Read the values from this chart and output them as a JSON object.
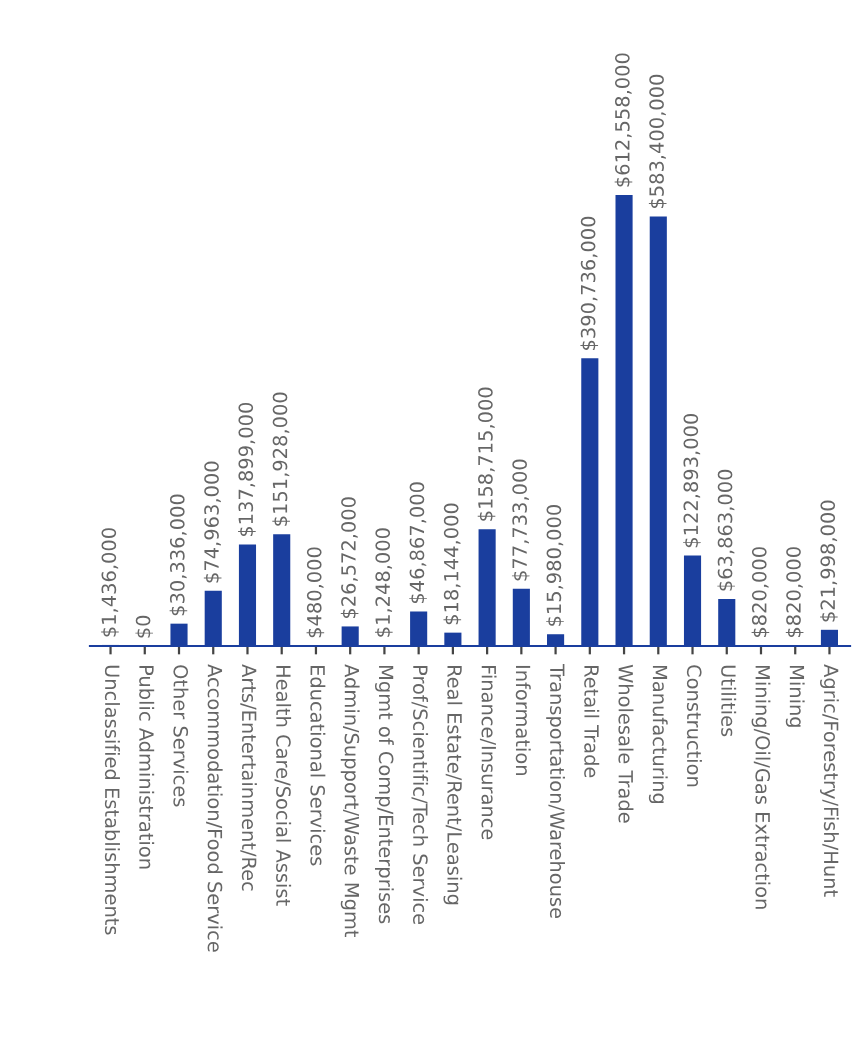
{
  "chart_data": {
    "type": "bar",
    "categories": [
      "Unclassified Establishments",
      "Public Administration",
      "Other Services",
      "Accommodation/Food Service",
      "Arts/Entertainment/Rec",
      "Health Care/Social Assist",
      "Educational Services",
      "Admin/Support/Waste Mgmt",
      "Mgmt of Comp/Enterprises",
      "Prof/Scientific/Tech Service",
      "Real Estate/Rent/Leasing",
      "Finance/Insurance",
      "Information",
      "Transportation/Warehouse",
      "Retail Trade",
      "Wholesale Trade",
      "Manufacturing",
      "Construction",
      "Utilities",
      "Mining/Oil/Gas Extraction",
      "Mining",
      "Agric/Forestry/Fish/Hunt"
    ],
    "values": [
      1436000,
      0,
      30336000,
      74963000,
      137899000,
      151928000,
      480000,
      26572000,
      1248000,
      46867000,
      18144000,
      158715000,
      77733000,
      15980000,
      390736000,
      612558000,
      583400000,
      122893000,
      63863000,
      820000,
      820000,
      21998000
    ],
    "value_labels": [
      "$1,436,000",
      "$0",
      "$30,336,000",
      "$74,963,000",
      "$137,899,000",
      "$151,928,000",
      "$480,000",
      "$26,572,000",
      "$1,248,000",
      "$46,867,000",
      "$18,144,000",
      "$158,715,000",
      "$77,733,000",
      "$15,980,000",
      "$390,736,000",
      "$612,558,000",
      "$583,400,000",
      "$122,893,000",
      "$63,863,000",
      "$820,000",
      "$820,000",
      "$21,998,000"
    ],
    "color": "#1a3e9e",
    "grid": false,
    "legend": false
  }
}
